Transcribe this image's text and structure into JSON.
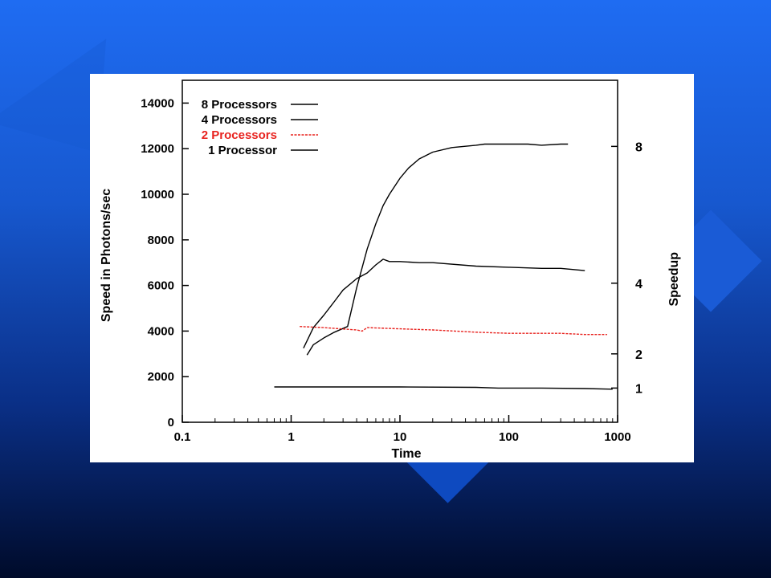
{
  "chart_data": {
    "type": "line",
    "title": "",
    "xlabel": "Time",
    "ylabel": "Speed in Photons/sec",
    "y2label": "Speedup",
    "x_scale": "log",
    "xlim": [
      0.1,
      1000
    ],
    "ylim": [
      0,
      15000
    ],
    "x_ticks": [
      "0.1",
      "1",
      "10",
      "100",
      "1000"
    ],
    "y_ticks": [
      "0",
      "2000",
      "4000",
      "6000",
      "8000",
      "10000",
      "12000",
      "14000"
    ],
    "y2_ticks": [
      {
        "label": "1",
        "value": 1500
      },
      {
        "label": "2",
        "value": 3000
      },
      {
        "label": "4",
        "value": 6100
      },
      {
        "label": "8",
        "value": 12100
      }
    ],
    "grid": false,
    "legend_position": "top-left",
    "colors": {
      "default": "#000000",
      "two_processors": "#e8231f"
    },
    "series": [
      {
        "name": "8 Processors",
        "color": "#000000",
        "dashed": false,
        "points": [
          [
            1.4,
            2950
          ],
          [
            1.6,
            3400
          ],
          [
            2.0,
            3700
          ],
          [
            2.5,
            3950
          ],
          [
            3.3,
            4200
          ],
          [
            4.0,
            5900
          ],
          [
            5.0,
            7600
          ],
          [
            6.0,
            8700
          ],
          [
            7.0,
            9500
          ],
          [
            8.0,
            10000
          ],
          [
            10,
            10700
          ],
          [
            12,
            11150
          ],
          [
            15,
            11550
          ],
          [
            20,
            11850
          ],
          [
            30,
            12050
          ],
          [
            50,
            12150
          ],
          [
            60,
            12200
          ],
          [
            150,
            12200
          ],
          [
            200,
            12150
          ],
          [
            300,
            12200
          ],
          [
            350,
            12200
          ]
        ]
      },
      {
        "name": "4 Processors",
        "color": "#000000",
        "dashed": false,
        "points": [
          [
            1.3,
            3250
          ],
          [
            1.6,
            4150
          ],
          [
            2.0,
            4700
          ],
          [
            2.5,
            5300
          ],
          [
            3.0,
            5800
          ],
          [
            4.0,
            6300
          ],
          [
            5.0,
            6550
          ],
          [
            6.0,
            6900
          ],
          [
            7.0,
            7150
          ],
          [
            8.0,
            7050
          ],
          [
            10,
            7050
          ],
          [
            15,
            7000
          ],
          [
            20,
            7000
          ],
          [
            50,
            6850
          ],
          [
            100,
            6800
          ],
          [
            200,
            6750
          ],
          [
            300,
            6750
          ],
          [
            500,
            6650
          ]
        ]
      },
      {
        "name": "2 Processors",
        "color": "#e8231f",
        "dashed": true,
        "points": [
          [
            1.2,
            4200
          ],
          [
            2.0,
            4150
          ],
          [
            4.0,
            4050
          ],
          [
            4.5,
            4000
          ],
          [
            5.0,
            4150
          ],
          [
            10,
            4100
          ],
          [
            20,
            4050
          ],
          [
            50,
            3950
          ],
          [
            100,
            3900
          ],
          [
            200,
            3900
          ],
          [
            300,
            3900
          ],
          [
            500,
            3850
          ],
          [
            800,
            3850
          ]
        ]
      },
      {
        "name": "1 Processor",
        "color": "#000000",
        "dashed": false,
        "points": [
          [
            0.7,
            1550
          ],
          [
            2,
            1550
          ],
          [
            10,
            1550
          ],
          [
            50,
            1530
          ],
          [
            80,
            1500
          ],
          [
            200,
            1500
          ],
          [
            500,
            1480
          ],
          [
            900,
            1450
          ]
        ]
      }
    ]
  }
}
